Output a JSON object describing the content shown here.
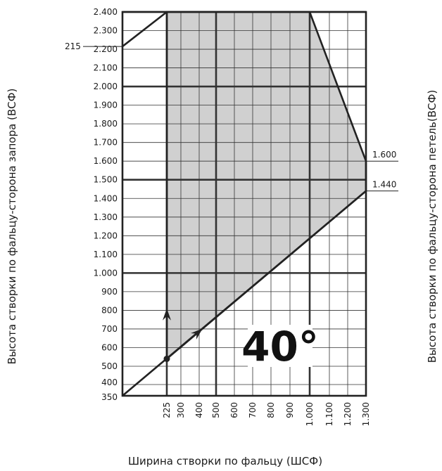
{
  "chart_data": {
    "type": "area",
    "xlabel": "Ширина створки по фальцу (ШСФ)",
    "ylabel_left": "Высота створки по фальцу-сторона запора (ВСФ)",
    "ylabel_right": "Высота створки по фальцу-сторона петель(ВСФ)",
    "angle_label": "40°",
    "xlim": [
      0,
      1300
    ],
    "ylim": [
      350,
      2400
    ],
    "x_ticks": [
      {
        "v": 225,
        "label": "225"
      },
      {
        "v": 300,
        "label": "300"
      },
      {
        "v": 400,
        "label": "400"
      },
      {
        "v": 500,
        "label": "500"
      },
      {
        "v": 600,
        "label": "600"
      },
      {
        "v": 700,
        "label": "700"
      },
      {
        "v": 800,
        "label": "800"
      },
      {
        "v": 900,
        "label": "900"
      },
      {
        "v": 1000,
        "label": "1.000"
      },
      {
        "v": 1100,
        "label": "1.100"
      },
      {
        "v": 1200,
        "label": "1.200"
      },
      {
        "v": 1300,
        "label": "1.300"
      }
    ],
    "y_ticks": [
      {
        "v": 2400,
        "label": "2.400"
      },
      {
        "v": 2300,
        "label": "2.300"
      },
      {
        "v": 2200,
        "label": "2.200"
      },
      {
        "v": 2100,
        "label": "2.100"
      },
      {
        "v": 2000,
        "label": "2.000"
      },
      {
        "v": 1900,
        "label": "1.900"
      },
      {
        "v": 1800,
        "label": "1.800"
      },
      {
        "v": 1700,
        "label": "1.700"
      },
      {
        "v": 1600,
        "label": "1.600"
      },
      {
        "v": 1500,
        "label": "1.500"
      },
      {
        "v": 1400,
        "label": "1.400"
      },
      {
        "v": 1300,
        "label": "1.300"
      },
      {
        "v": 1200,
        "label": "1.200"
      },
      {
        "v": 1100,
        "label": "1.100"
      },
      {
        "v": 1000,
        "label": "1.000"
      },
      {
        "v": 900,
        "label": "900"
      },
      {
        "v": 800,
        "label": "800"
      },
      {
        "v": 700,
        "label": "700"
      },
      {
        "v": 600,
        "label": "600"
      },
      {
        "v": 500,
        "label": "500"
      },
      {
        "v": 400,
        "label": "400"
      },
      {
        "v": 350,
        "label": "350"
      }
    ],
    "bold_x": [
      225,
      500,
      1000
    ],
    "bold_y": [
      1000,
      1500,
      2000,
      2400
    ],
    "region": [
      {
        "x": 225,
        "y": 2400
      },
      {
        "x": 1000,
        "y": 2400
      },
      {
        "x": 1300,
        "y": 1600
      },
      {
        "x": 1300,
        "y": 1440
      },
      {
        "x": 225,
        "y": 540
      }
    ],
    "diagonal_lower": [
      {
        "x": 0,
        "y": 350
      },
      {
        "x": 1300,
        "y": 1440
      }
    ],
    "diagonal_upper": [
      {
        "x": 0,
        "y": 2215
      },
      {
        "x": 225,
        "y": 2400
      }
    ],
    "marker_point": {
      "x": 225,
      "y": 540
    },
    "annotations": {
      "left_215": {
        "label": "215",
        "y": 2215
      },
      "right_1600": {
        "label": "1.600",
        "y": 1600
      },
      "right_1440": {
        "label": "1.440",
        "y": 1440
      }
    },
    "colors": {
      "fill": "#d0d0d0",
      "line": "#222222",
      "grid": "#333333"
    }
  }
}
